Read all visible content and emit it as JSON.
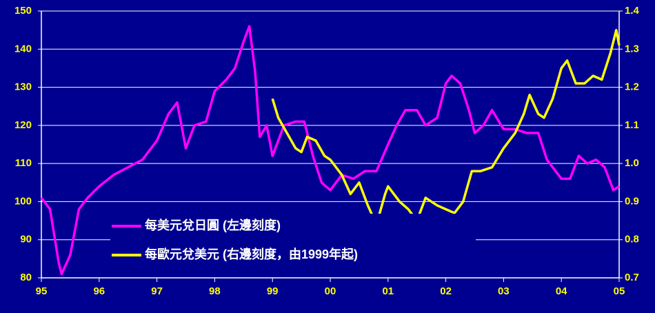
{
  "chart_data": {
    "type": "line",
    "xlim": [
      1995,
      2005
    ],
    "xticks": [
      {
        "value": 1995,
        "label": "95"
      },
      {
        "value": 1996,
        "label": "96"
      },
      {
        "value": 1997,
        "label": "97"
      },
      {
        "value": 1998,
        "label": "98"
      },
      {
        "value": 1999,
        "label": "99"
      },
      {
        "value": 2000,
        "label": "00"
      },
      {
        "value": 2001,
        "label": "01"
      },
      {
        "value": 2002,
        "label": "02"
      },
      {
        "value": 2003,
        "label": "03"
      },
      {
        "value": 2004,
        "label": "04"
      },
      {
        "value": 2005,
        "label": "05"
      }
    ],
    "ylim": [
      80,
      150
    ],
    "yticks": [
      80,
      90,
      100,
      110,
      120,
      130,
      140,
      150
    ],
    "y2lim": [
      0.7,
      1.4
    ],
    "y2ticks": [
      0.7,
      0.8,
      0.9,
      {
        "value": 1,
        "label": "1.0"
      },
      1.1,
      1.2,
      1.3,
      1.4
    ],
    "grid": true,
    "series": [
      {
        "name": "每美元兌日圓 (左邊刻度)",
        "color": "#ff00ff",
        "x": [
          1995.0,
          1995.15,
          1995.3,
          1995.35,
          1995.5,
          1995.65,
          1995.8,
          1996.0,
          1996.25,
          1996.5,
          1996.75,
          1997.0,
          1997.2,
          1997.35,
          1997.5,
          1997.65,
          1997.85,
          1998.0,
          1998.2,
          1998.35,
          1998.5,
          1998.6,
          1998.7,
          1998.78,
          1998.9,
          1999.0,
          1999.2,
          1999.4,
          1999.55,
          1999.7,
          1999.85,
          2000.0,
          2000.2,
          2000.4,
          2000.6,
          2000.8,
          2001.0,
          2001.15,
          2001.3,
          2001.5,
          2001.65,
          2001.85,
          2002.0,
          2002.1,
          2002.25,
          2002.4,
          2002.5,
          2002.65,
          2002.8,
          2003.0,
          2003.2,
          2003.4,
          2003.6,
          2003.75,
          2003.9,
          2004.0,
          2004.15,
          2004.3,
          2004.45,
          2004.6,
          2004.75,
          2004.9,
          2005.0
        ],
        "values": [
          101,
          98,
          84,
          81,
          86,
          98,
          101,
          104,
          107,
          109,
          111,
          116,
          123,
          126,
          114,
          120,
          121,
          129,
          132,
          135,
          142,
          146,
          134,
          117,
          120,
          112,
          120,
          121,
          121,
          112,
          105,
          103,
          107,
          106,
          108,
          108,
          115,
          120,
          124,
          124,
          120,
          122,
          131,
          133,
          131,
          124,
          118,
          120,
          124,
          119,
          119,
          118,
          118,
          111,
          108,
          106,
          106,
          112,
          110,
          111,
          109,
          103,
          104
        ]
      },
      {
        "name": "每歐元兌美元 (右邊刻度，由1999年起)",
        "color": "#ffff00",
        "axis": "y2",
        "x": [
          1999.0,
          1999.1,
          1999.25,
          1999.4,
          1999.5,
          1999.6,
          1999.75,
          1999.9,
          2000.0,
          2000.2,
          2000.35,
          2000.5,
          2000.65,
          2000.8,
          2000.95,
          2001.0,
          2001.2,
          2001.35,
          2001.5,
          2001.65,
          2001.85,
          2002.0,
          2002.15,
          2002.3,
          2002.45,
          2002.6,
          2002.8,
          2003.0,
          2003.2,
          2003.35,
          2003.45,
          2003.6,
          2003.7,
          2003.85,
          2004.0,
          2004.1,
          2004.25,
          2004.4,
          2004.55,
          2004.7,
          2004.85,
          2004.95,
          2005.0
        ],
        "values": [
          1.17,
          1.12,
          1.08,
          1.04,
          1.03,
          1.07,
          1.06,
          1.02,
          1.01,
          0.97,
          0.92,
          0.95,
          0.89,
          0.84,
          0.92,
          0.94,
          0.9,
          0.88,
          0.85,
          0.91,
          0.89,
          0.88,
          0.87,
          0.9,
          0.98,
          0.98,
          0.99,
          1.04,
          1.08,
          1.13,
          1.18,
          1.13,
          1.12,
          1.17,
          1.25,
          1.27,
          1.21,
          1.21,
          1.23,
          1.22,
          1.29,
          1.35,
          1.31
        ]
      }
    ]
  }
}
